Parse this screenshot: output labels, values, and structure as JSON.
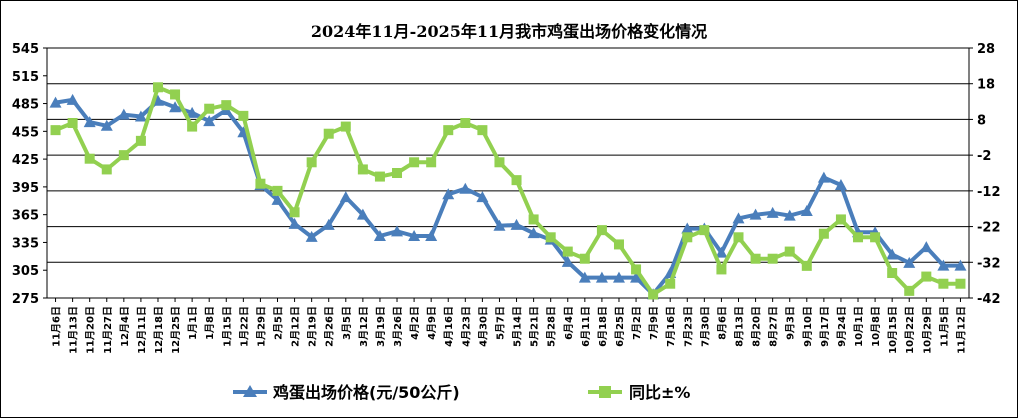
{
  "chart_data": {
    "type": "line",
    "title": "2024年11月-2025年11月我市鸡蛋出场价格变化情况",
    "x": [
      "11月6日",
      "11月13日",
      "11月20日",
      "11月27日",
      "12月4日",
      "12月11日",
      "12月18日",
      "12月25日",
      "1月1日",
      "1月8日",
      "1月15日",
      "1月22日",
      "1月29日",
      "2月5日",
      "2月12日",
      "2月19日",
      "2月26日",
      "3月5日",
      "3月12日",
      "3月19日",
      "3月26日",
      "4月2日",
      "4月9日",
      "4月16日",
      "4月23日",
      "4月30日",
      "5月7日",
      "5月14日",
      "5月21日",
      "5月28日",
      "6月4日",
      "6月11日",
      "6月18日",
      "6月25日",
      "7月2日",
      "7月9日",
      "7月16日",
      "7月23日",
      "7月30日",
      "8月6日",
      "8月13日",
      "8月20日",
      "8月27日",
      "9月3日",
      "9月10日",
      "9月17日",
      "9月24日",
      "10月1日",
      "10月8日",
      "10月15日",
      "10月22日",
      "10月29日",
      "11月5日",
      "11月12日"
    ],
    "y_left": {
      "ticks": [
        275,
        305,
        335,
        365,
        395,
        425,
        455,
        485,
        515,
        545
      ],
      "ylim": [
        275,
        545
      ]
    },
    "y_right": {
      "ticks": [
        -42,
        -32,
        -22,
        -12,
        -2,
        8,
        18,
        28
      ],
      "ylim": [
        -42,
        28
      ]
    },
    "grid": true,
    "legend_position": "bottom",
    "series": [
      {
        "name": "鸡蛋出场价格(元/50公斤)",
        "axis": "left",
        "color": "#4a7ebb",
        "marker": "triangle",
        "values": [
          486,
          489,
          465,
          461,
          473,
          471,
          488,
          481,
          475,
          466,
          478,
          454,
          397,
          381,
          355,
          341,
          354,
          384,
          365,
          342,
          347,
          342,
          342,
          387,
          393,
          384,
          353,
          354,
          345,
          338,
          314,
          297,
          297,
          297,
          297,
          279,
          302,
          350,
          350,
          324,
          361,
          365,
          367,
          364,
          369,
          405,
          397,
          346,
          346,
          322,
          313,
          330,
          310,
          310
        ]
      },
      {
        "name": "同比±%",
        "axis": "right",
        "color": "#92d050",
        "marker": "square",
        "values": [
          5,
          7,
          -3,
          -6,
          -2,
          2,
          17,
          15,
          6,
          11,
          12,
          9,
          -10,
          -12,
          -18,
          -4,
          4,
          6,
          -6,
          -8,
          -7,
          -4,
          -4,
          5,
          7,
          5,
          -4,
          -9,
          -20,
          -25,
          -29,
          -31,
          -23,
          -27,
          -34,
          -41,
          -38,
          -25,
          -23,
          -34,
          -25,
          -31,
          -31,
          -29,
          -33,
          -24,
          -20,
          -25,
          -25,
          -35,
          -40,
          -36,
          -38,
          -38
        ]
      }
    ]
  }
}
